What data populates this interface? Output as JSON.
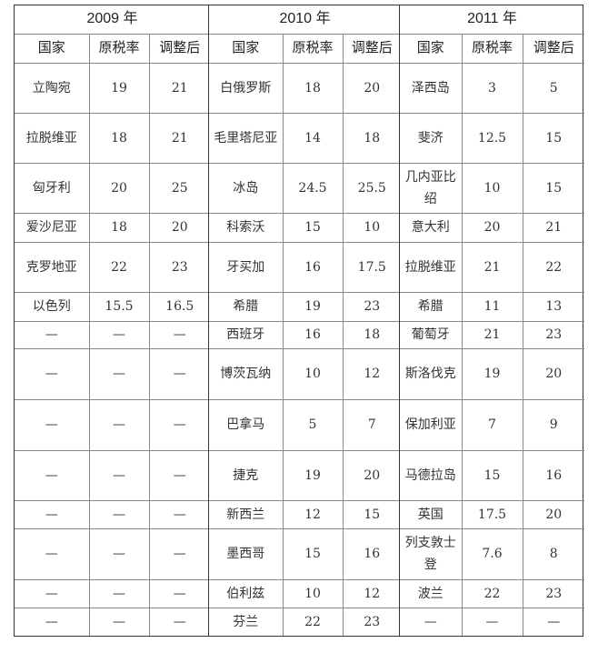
{
  "columns": [
    "国家",
    "原税率",
    "调整后"
  ],
  "groups": [
    {
      "year": "2009 年",
      "rows": [
        [
          "立陶宛",
          "19",
          "21"
        ],
        [
          "拉脱维亚",
          "18",
          "21"
        ],
        [
          "匈牙利",
          "20",
          "25"
        ],
        [
          "爱沙尼亚",
          "18",
          "20"
        ],
        [
          "克罗地亚",
          "22",
          "23"
        ],
        [
          "以色列",
          "15.5",
          "16.5"
        ],
        [
          "—",
          "—",
          "—"
        ],
        [
          "—",
          "—",
          "—"
        ],
        [
          "—",
          "—",
          "—"
        ],
        [
          "—",
          "—",
          "—"
        ],
        [
          "—",
          "—",
          "—"
        ],
        [
          "—",
          "—",
          "—"
        ],
        [
          "—",
          "—",
          "—"
        ],
        [
          "—",
          "—",
          "—"
        ]
      ]
    },
    {
      "year": "2010 年",
      "rows": [
        [
          "白俄罗斯",
          "18",
          "20"
        ],
        [
          "毛里塔尼亚",
          "14",
          "18"
        ],
        [
          "冰岛",
          "24.5",
          "25.5"
        ],
        [
          "科索沃",
          "15",
          "10"
        ],
        [
          "牙买加",
          "16",
          "17.5"
        ],
        [
          "希腊",
          "19",
          "23"
        ],
        [
          "西班牙",
          "16",
          "18"
        ],
        [
          "博茨瓦纳",
          "10",
          "12"
        ],
        [
          "巴拿马",
          "5",
          "7"
        ],
        [
          "捷克",
          "19",
          "20"
        ],
        [
          "新西兰",
          "12",
          "15"
        ],
        [
          "墨西哥",
          "15",
          "16"
        ],
        [
          "伯利兹",
          "10",
          "12"
        ],
        [
          "芬兰",
          "22",
          "23"
        ]
      ]
    },
    {
      "year": "2011 年",
      "rows": [
        [
          "泽西岛",
          "3",
          "5"
        ],
        [
          "斐济",
          "12.5",
          "15"
        ],
        [
          "几内亚比绍",
          "10",
          "15"
        ],
        [
          "意大利",
          "20",
          "21"
        ],
        [
          "拉脱维亚",
          "21",
          "22"
        ],
        [
          "希腊",
          "11",
          "13"
        ],
        [
          "葡萄牙",
          "21",
          "23"
        ],
        [
          "斯洛伐克",
          "19",
          "20"
        ],
        [
          "保加利亚",
          "7",
          "9"
        ],
        [
          "马德拉岛",
          "15",
          "16"
        ],
        [
          "英国",
          "17.5",
          "20"
        ],
        [
          "列支敦士登",
          "7.6",
          "8"
        ],
        [
          "波兰",
          "22",
          "23"
        ],
        [
          "—",
          "—",
          "—"
        ]
      ]
    }
  ]
}
